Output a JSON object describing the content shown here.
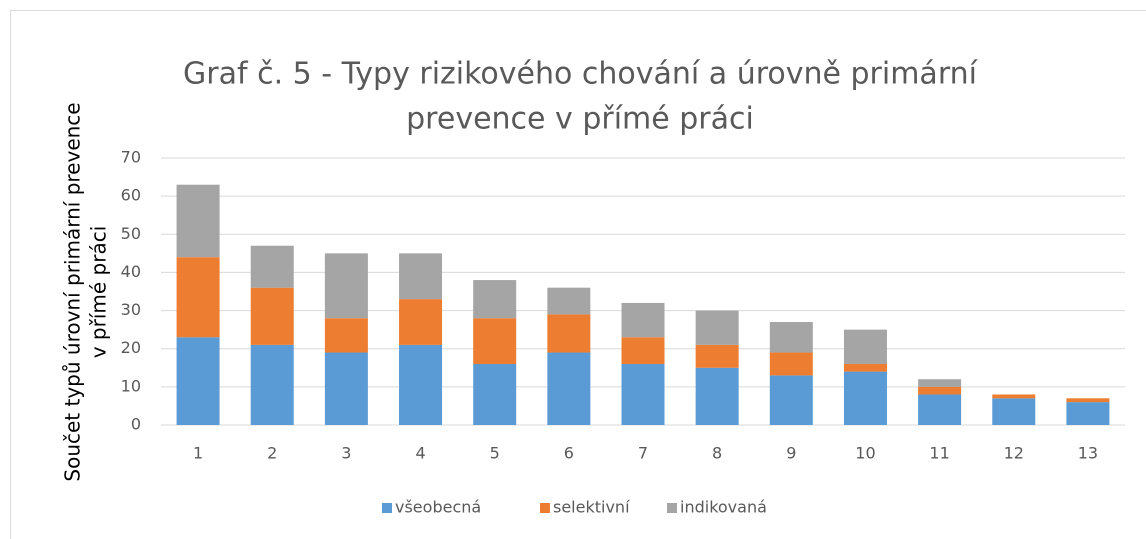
{
  "chart_data": {
    "type": "stacked_bar",
    "title": [
      "Graf č. 5 -  Typy rizikového chování a úrovně primární",
      "prevence v přímé práci"
    ],
    "ylabel": [
      "Součet typů úrovní primární prevence",
      "v přímé práci"
    ],
    "categories": [
      "1",
      "2",
      "3",
      "4",
      "5",
      "6",
      "7",
      "8",
      "9",
      "10",
      "11",
      "12",
      "13"
    ],
    "series": [
      {
        "name": "všeobecná",
        "color": "#5b9bd5",
        "values": [
          23,
          21,
          19,
          21,
          16,
          19,
          16,
          15,
          13,
          14,
          8,
          7,
          6
        ]
      },
      {
        "name": "selektivní",
        "color": "#ed7d31",
        "values": [
          21,
          15,
          9,
          12,
          12,
          10,
          7,
          6,
          6,
          2,
          2,
          1,
          1
        ]
      },
      {
        "name": "indikovaná",
        "color": "#a5a5a5",
        "values": [
          19,
          11,
          17,
          12,
          10,
          7,
          9,
          9,
          8,
          9,
          2,
          0,
          0
        ]
      }
    ],
    "ylim": [
      0,
      70
    ],
    "yticks": [
      0,
      10,
      20,
      30,
      40,
      50,
      60,
      70
    ],
    "grid": true,
    "legend": "bottom"
  }
}
